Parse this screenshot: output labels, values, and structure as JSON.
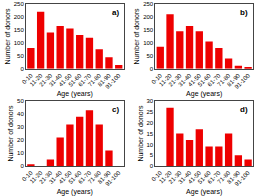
{
  "chart_data": [
    {
      "type": "bar",
      "annotations": [
        "a)"
      ],
      "xlabel": "Age (years)",
      "ylabel": "Number of donors",
      "categories": [
        "0-10",
        "11-20",
        "21-30",
        "31-40",
        "41-50",
        "51-60",
        "61-70",
        "71-80",
        "81-90",
        "91-100"
      ],
      "values": [
        80,
        220,
        140,
        165,
        155,
        130,
        120,
        75,
        45,
        15
      ],
      "color": "#EE0000",
      "ylim": [
        0,
        250
      ],
      "yticks": [
        0,
        50,
        100,
        150,
        200,
        250
      ],
      "grid": false
    },
    {
      "type": "bar",
      "annotations": [
        "b)"
      ],
      "xlabel": "Age (years)",
      "ylabel": "Number of donors",
      "categories": [
        "0-10",
        "11-20",
        "21-30",
        "31-40",
        "41-50",
        "51-60",
        "61-70",
        "71-80",
        "81-90",
        "91-100"
      ],
      "values": [
        85,
        210,
        145,
        165,
        145,
        105,
        80,
        40,
        12,
        5
      ],
      "color": "#EE0000",
      "ylim": [
        0,
        250
      ],
      "yticks": [
        0,
        50,
        100,
        150,
        200,
        250
      ],
      "grid": false
    },
    {
      "type": "bar",
      "annotations": [
        "c)"
      ],
      "xlabel": "Age (years)",
      "ylabel": "Number of donors",
      "categories": [
        "0-10",
        "11-20",
        "21-30",
        "31-40",
        "41-50",
        "51-60",
        "61-70",
        "71-80",
        "81-90",
        "91-100"
      ],
      "values": [
        1,
        0,
        5,
        22,
        32,
        38,
        43,
        32,
        12,
        0
      ],
      "color": "#EE0000",
      "ylim": [
        0,
        50
      ],
      "yticks": [
        0,
        10,
        20,
        30,
        40,
        50
      ],
      "grid": false
    },
    {
      "type": "bar",
      "annotations": [
        "d)"
      ],
      "xlabel": "Age (years)",
      "ylabel": "Number of donors",
      "categories": [
        "0-10",
        "11-20",
        "21-30",
        "31-40",
        "41-50",
        "51-60",
        "61-70",
        "71-80",
        "81-90",
        "91-100"
      ],
      "values": [
        0,
        27,
        15,
        12,
        17,
        9,
        9,
        15,
        5,
        3
      ],
      "color": "#EE0000",
      "ylim": [
        0,
        30
      ],
      "yticks": [
        0,
        5,
        10,
        15,
        20,
        25,
        30
      ],
      "grid": false
    }
  ]
}
